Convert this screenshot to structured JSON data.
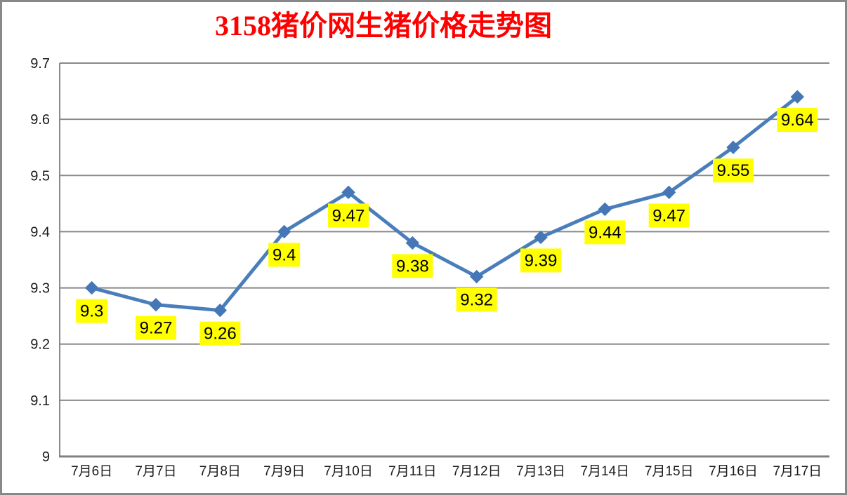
{
  "chart_data": {
    "type": "line",
    "title": "3158猪价网生猪价格走势图",
    "categories": [
      "7月6日",
      "7月7日",
      "7月8日",
      "7月9日",
      "7月10日",
      "7月11日",
      "7月12日",
      "7月13日",
      "7月14日",
      "7月15日",
      "7月16日",
      "7月17日"
    ],
    "values": [
      9.3,
      9.27,
      9.26,
      9.4,
      9.47,
      9.38,
      9.32,
      9.39,
      9.44,
      9.47,
      9.55,
      9.64
    ],
    "data_labels": [
      "9.3",
      "9.27",
      "9.26",
      "9.4",
      "9.47",
      "9.38",
      "9.32",
      "9.39",
      "9.44",
      "9.47",
      "9.55",
      "9.64"
    ],
    "xlabel": "",
    "ylabel": "",
    "ylim": [
      9,
      9.7
    ],
    "yticks": [
      9,
      9.1,
      9.2,
      9.3,
      9.4,
      9.5,
      9.6,
      9.7
    ],
    "ytick_labels": [
      "9",
      "9.1",
      "9.2",
      "9.3",
      "9.4",
      "9.5",
      "9.6",
      "9.7"
    ],
    "grid": true,
    "legend": "none",
    "marker": "diamond",
    "colors": {
      "title": "#ff0000",
      "line": "#4a7ebb",
      "marker": "#4576b5",
      "label_bg": "#ffff00",
      "label_text": "#000000",
      "grid": "#898989",
      "axis": "#808080",
      "axis_text": "#1a1a1a",
      "background": "#ffffff"
    }
  }
}
